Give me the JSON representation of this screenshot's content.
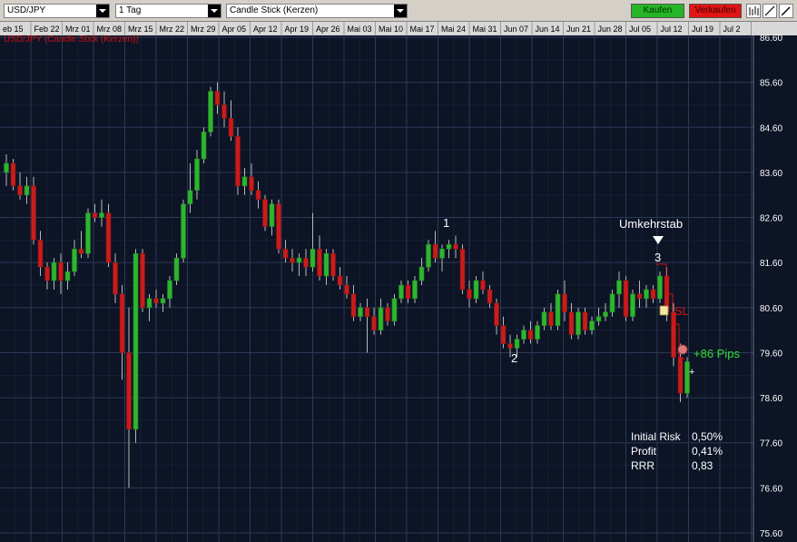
{
  "toolbar": {
    "symbol": "USD/JPY",
    "timeframe": "1 Tag",
    "chart_style": "Candle Stick (Kerzen)",
    "buy_label": "Kaufen",
    "sell_label": "Verkaufen",
    "tools": [
      "bar-chart-icon",
      "line-tool-icon",
      "pen-tool-icon"
    ]
  },
  "chart_label": "USD/JPY (Candle Stick (Kerzen))",
  "annotations": {
    "point1": "1",
    "point2": "2",
    "point3": "3",
    "umkehrstab": "Umkehrstab",
    "sl": "SL",
    "pips": "+86 Pips",
    "cursor": "+"
  },
  "stats": {
    "rows": [
      {
        "label": "Initial Risk",
        "value": "0,50%"
      },
      {
        "label": "Profit",
        "value": "0,41%"
      },
      {
        "label": "RRR",
        "value": "0,83"
      }
    ]
  },
  "colors": {
    "background": "#0c1426",
    "grid": "#2b3a55",
    "bull": "#2fb52f",
    "bear": "#c81d1d",
    "wick": "#b8b8b8",
    "axis_text": "#ffffff",
    "label_red": "#d01010",
    "pips_green": "#33dd33"
  },
  "chart_data": {
    "type": "candlestick",
    "title": "USD/JPY (Candle Stick (Kerzen))",
    "timeframe": "1 Tag",
    "x_ticks": [
      "eb 15",
      "Feb 22",
      "Mrz 01",
      "Mrz 08",
      "Mrz 15",
      "Mrz 22",
      "Mrz 29",
      "Apr 05",
      "Apr 12",
      "Apr 19",
      "Apr 26",
      "Mai 03",
      "Mai 10",
      "Mai 17",
      "Mai 24",
      "Mai 31",
      "Jun 07",
      "Jun 14",
      "Jun 21",
      "Jun 28",
      "Jul 05",
      "Jul 12",
      "Jul 19",
      "Jul 2"
    ],
    "y_ticks": [
      75.6,
      76.6,
      77.6,
      78.6,
      79.6,
      80.6,
      81.6,
      82.6,
      83.6,
      84.6,
      85.6,
      86.6
    ],
    "ylim": [
      75.6,
      86.6
    ],
    "grid": true,
    "candles": [
      {
        "o": 83.6,
        "h": 84.0,
        "l": 83.3,
        "c": 83.8
      },
      {
        "o": 83.8,
        "h": 83.9,
        "l": 83.2,
        "c": 83.3
      },
      {
        "o": 83.3,
        "h": 83.6,
        "l": 83.0,
        "c": 83.1
      },
      {
        "o": 83.1,
        "h": 83.5,
        "l": 82.9,
        "c": 83.3
      },
      {
        "o": 83.3,
        "h": 83.5,
        "l": 82.0,
        "c": 82.1
      },
      {
        "o": 82.1,
        "h": 82.3,
        "l": 81.3,
        "c": 81.5
      },
      {
        "o": 81.5,
        "h": 81.6,
        "l": 81.0,
        "c": 81.2
      },
      {
        "o": 81.2,
        "h": 81.7,
        "l": 81.0,
        "c": 81.6
      },
      {
        "o": 81.6,
        "h": 81.8,
        "l": 80.9,
        "c": 81.2
      },
      {
        "o": 81.2,
        "h": 81.6,
        "l": 81.0,
        "c": 81.4
      },
      {
        "o": 81.4,
        "h": 82.1,
        "l": 81.3,
        "c": 81.9
      },
      {
        "o": 81.9,
        "h": 82.3,
        "l": 81.7,
        "c": 81.8
      },
      {
        "o": 81.8,
        "h": 82.8,
        "l": 81.7,
        "c": 82.7
      },
      {
        "o": 82.7,
        "h": 82.9,
        "l": 82.5,
        "c": 82.6
      },
      {
        "o": 82.6,
        "h": 83.0,
        "l": 82.4,
        "c": 82.7
      },
      {
        "o": 82.7,
        "h": 82.9,
        "l": 81.5,
        "c": 81.6
      },
      {
        "o": 81.6,
        "h": 81.8,
        "l": 80.7,
        "c": 80.9
      },
      {
        "o": 80.9,
        "h": 81.1,
        "l": 79.0,
        "c": 79.6
      },
      {
        "o": 79.6,
        "h": 80.6,
        "l": 76.6,
        "c": 77.9
      },
      {
        "o": 77.9,
        "h": 81.9,
        "l": 77.6,
        "c": 81.8
      },
      {
        "o": 81.8,
        "h": 81.9,
        "l": 80.5,
        "c": 80.6
      },
      {
        "o": 80.6,
        "h": 80.9,
        "l": 80.3,
        "c": 80.8
      },
      {
        "o": 80.8,
        "h": 81.0,
        "l": 80.6,
        "c": 80.7
      },
      {
        "o": 80.7,
        "h": 80.9,
        "l": 80.5,
        "c": 80.8
      },
      {
        "o": 80.8,
        "h": 81.3,
        "l": 80.6,
        "c": 81.2
      },
      {
        "o": 81.2,
        "h": 81.8,
        "l": 81.1,
        "c": 81.7
      },
      {
        "o": 81.7,
        "h": 83.0,
        "l": 81.6,
        "c": 82.9
      },
      {
        "o": 82.9,
        "h": 83.8,
        "l": 82.7,
        "c": 83.2
      },
      {
        "o": 83.2,
        "h": 84.1,
        "l": 83.0,
        "c": 83.9
      },
      {
        "o": 83.9,
        "h": 84.6,
        "l": 83.8,
        "c": 84.5
      },
      {
        "o": 84.5,
        "h": 85.5,
        "l": 84.4,
        "c": 85.4
      },
      {
        "o": 85.4,
        "h": 85.6,
        "l": 84.9,
        "c": 85.1
      },
      {
        "o": 85.1,
        "h": 85.4,
        "l": 84.6,
        "c": 84.8
      },
      {
        "o": 84.8,
        "h": 85.2,
        "l": 84.3,
        "c": 84.4
      },
      {
        "o": 84.4,
        "h": 84.6,
        "l": 83.1,
        "c": 83.3
      },
      {
        "o": 83.3,
        "h": 83.7,
        "l": 83.1,
        "c": 83.5
      },
      {
        "o": 83.5,
        "h": 83.8,
        "l": 83.1,
        "c": 83.2
      },
      {
        "o": 83.2,
        "h": 83.4,
        "l": 82.8,
        "c": 83.0
      },
      {
        "o": 83.0,
        "h": 83.1,
        "l": 82.3,
        "c": 82.4
      },
      {
        "o": 82.4,
        "h": 83.0,
        "l": 82.2,
        "c": 82.9
      },
      {
        "o": 82.9,
        "h": 83.0,
        "l": 81.8,
        "c": 81.9
      },
      {
        "o": 81.9,
        "h": 82.1,
        "l": 81.6,
        "c": 81.7
      },
      {
        "o": 81.7,
        "h": 81.9,
        "l": 81.4,
        "c": 81.6
      },
      {
        "o": 81.6,
        "h": 81.8,
        "l": 81.3,
        "c": 81.7
      },
      {
        "o": 81.7,
        "h": 81.9,
        "l": 81.3,
        "c": 81.5
      },
      {
        "o": 81.5,
        "h": 82.7,
        "l": 81.4,
        "c": 81.9
      },
      {
        "o": 81.9,
        "h": 82.2,
        "l": 81.2,
        "c": 81.3
      },
      {
        "o": 81.3,
        "h": 81.9,
        "l": 81.1,
        "c": 81.8
      },
      {
        "o": 81.8,
        "h": 81.9,
        "l": 81.2,
        "c": 81.3
      },
      {
        "o": 81.3,
        "h": 81.5,
        "l": 81.0,
        "c": 81.1
      },
      {
        "o": 81.1,
        "h": 81.3,
        "l": 80.8,
        "c": 80.9
      },
      {
        "o": 80.9,
        "h": 81.1,
        "l": 80.3,
        "c": 80.4
      },
      {
        "o": 80.4,
        "h": 80.7,
        "l": 80.3,
        "c": 80.6
      },
      {
        "o": 80.6,
        "h": 80.8,
        "l": 79.6,
        "c": 80.4
      },
      {
        "o": 80.4,
        "h": 80.6,
        "l": 80.0,
        "c": 80.1
      },
      {
        "o": 80.1,
        "h": 80.8,
        "l": 80.0,
        "c": 80.6
      },
      {
        "o": 80.6,
        "h": 80.7,
        "l": 80.2,
        "c": 80.3
      },
      {
        "o": 80.3,
        "h": 80.9,
        "l": 80.2,
        "c": 80.8
      },
      {
        "o": 80.8,
        "h": 81.2,
        "l": 80.7,
        "c": 81.1
      },
      {
        "o": 81.1,
        "h": 81.2,
        "l": 80.7,
        "c": 80.8
      },
      {
        "o": 80.8,
        "h": 81.3,
        "l": 80.7,
        "c": 81.2
      },
      {
        "o": 81.2,
        "h": 81.7,
        "l": 81.1,
        "c": 81.5
      },
      {
        "o": 81.5,
        "h": 82.1,
        "l": 81.4,
        "c": 82.0
      },
      {
        "o": 82.0,
        "h": 82.3,
        "l": 81.6,
        "c": 81.7
      },
      {
        "o": 81.7,
        "h": 82.0,
        "l": 81.4,
        "c": 81.9
      },
      {
        "o": 81.9,
        "h": 82.1,
        "l": 81.7,
        "c": 82.0
      },
      {
        "o": 82.0,
        "h": 82.2,
        "l": 81.7,
        "c": 81.9
      },
      {
        "o": 81.9,
        "h": 82.0,
        "l": 80.9,
        "c": 81.0
      },
      {
        "o": 81.0,
        "h": 81.2,
        "l": 80.6,
        "c": 80.8
      },
      {
        "o": 80.8,
        "h": 81.3,
        "l": 80.7,
        "c": 81.2
      },
      {
        "o": 81.2,
        "h": 81.4,
        "l": 80.9,
        "c": 81.0
      },
      {
        "o": 81.0,
        "h": 81.1,
        "l": 80.6,
        "c": 80.7
      },
      {
        "o": 80.7,
        "h": 80.8,
        "l": 80.0,
        "c": 80.2
      },
      {
        "o": 80.2,
        "h": 80.4,
        "l": 79.7,
        "c": 79.8
      },
      {
        "o": 79.8,
        "h": 80.0,
        "l": 79.5,
        "c": 79.7
      },
      {
        "o": 79.7,
        "h": 80.0,
        "l": 79.5,
        "c": 79.9
      },
      {
        "o": 79.9,
        "h": 80.2,
        "l": 79.8,
        "c": 80.1
      },
      {
        "o": 80.1,
        "h": 80.3,
        "l": 79.8,
        "c": 79.9
      },
      {
        "o": 79.9,
        "h": 80.3,
        "l": 79.8,
        "c": 80.2
      },
      {
        "o": 80.2,
        "h": 80.6,
        "l": 80.1,
        "c": 80.5
      },
      {
        "o": 80.5,
        "h": 80.7,
        "l": 80.1,
        "c": 80.2
      },
      {
        "o": 80.2,
        "h": 81.0,
        "l": 80.1,
        "c": 80.9
      },
      {
        "o": 80.9,
        "h": 81.2,
        "l": 80.3,
        "c": 80.5
      },
      {
        "o": 80.5,
        "h": 80.7,
        "l": 79.9,
        "c": 80.0
      },
      {
        "o": 80.0,
        "h": 80.6,
        "l": 79.9,
        "c": 80.5
      },
      {
        "o": 80.5,
        "h": 80.6,
        "l": 80.0,
        "c": 80.1
      },
      {
        "o": 80.1,
        "h": 80.4,
        "l": 80.0,
        "c": 80.3
      },
      {
        "o": 80.3,
        "h": 80.6,
        "l": 80.2,
        "c": 80.4
      },
      {
        "o": 80.4,
        "h": 80.7,
        "l": 80.3,
        "c": 80.5
      },
      {
        "o": 80.5,
        "h": 81.0,
        "l": 80.4,
        "c": 80.9
      },
      {
        "o": 80.9,
        "h": 81.4,
        "l": 80.6,
        "c": 81.2
      },
      {
        "o": 81.2,
        "h": 81.3,
        "l": 80.3,
        "c": 80.4
      },
      {
        "o": 80.4,
        "h": 81.0,
        "l": 80.3,
        "c": 80.9
      },
      {
        "o": 80.9,
        "h": 81.2,
        "l": 80.6,
        "c": 80.8
      },
      {
        "o": 80.8,
        "h": 81.1,
        "l": 80.6,
        "c": 81.0
      },
      {
        "o": 81.0,
        "h": 81.1,
        "l": 80.7,
        "c": 80.8
      },
      {
        "o": 80.8,
        "h": 81.4,
        "l": 80.7,
        "c": 81.3
      },
      {
        "o": 81.3,
        "h": 81.5,
        "l": 80.3,
        "c": 80.5
      },
      {
        "o": 80.5,
        "h": 80.7,
        "l": 79.3,
        "c": 79.5
      },
      {
        "o": 79.5,
        "h": 79.8,
        "l": 78.5,
        "c": 78.7
      },
      {
        "o": 78.7,
        "h": 79.5,
        "l": 78.6,
        "c": 79.4
      }
    ]
  }
}
